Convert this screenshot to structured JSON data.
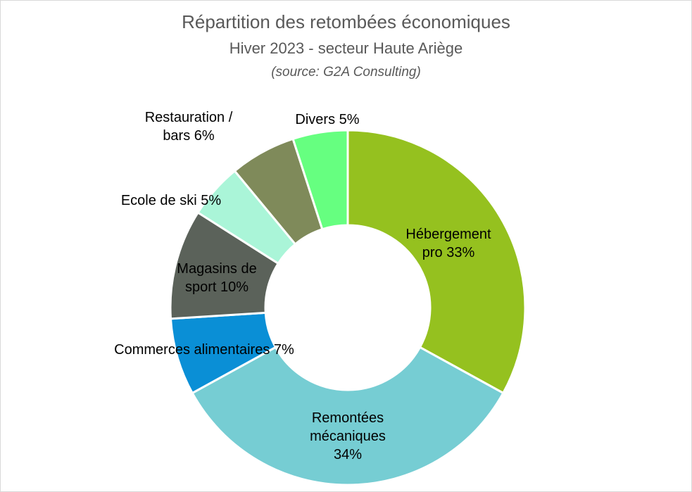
{
  "chart_data": {
    "type": "donut",
    "title": "Répartition des retombées économiques",
    "subtitle": "Hiver 2023 - secteur Haute Ariège",
    "source": "(source: G2A Consulting)",
    "categories": [
      "Hébergement pro",
      "Remontées mécaniques",
      "Commerces alimentaires",
      "Magasins de sport",
      "Ecole de ski",
      "Restauration / bars",
      "Divers"
    ],
    "values": [
      33,
      34,
      7,
      10,
      5,
      6,
      5
    ],
    "value_labels": [
      "33%",
      "34%",
      "7%",
      "10%",
      "5%",
      "6%",
      "5%"
    ],
    "colors": [
      "#95c11f",
      "#76cdd3",
      "#0a8fd6",
      "#5b625a",
      "#aaf5d8",
      "#7f8a5a",
      "#66ff80"
    ]
  }
}
